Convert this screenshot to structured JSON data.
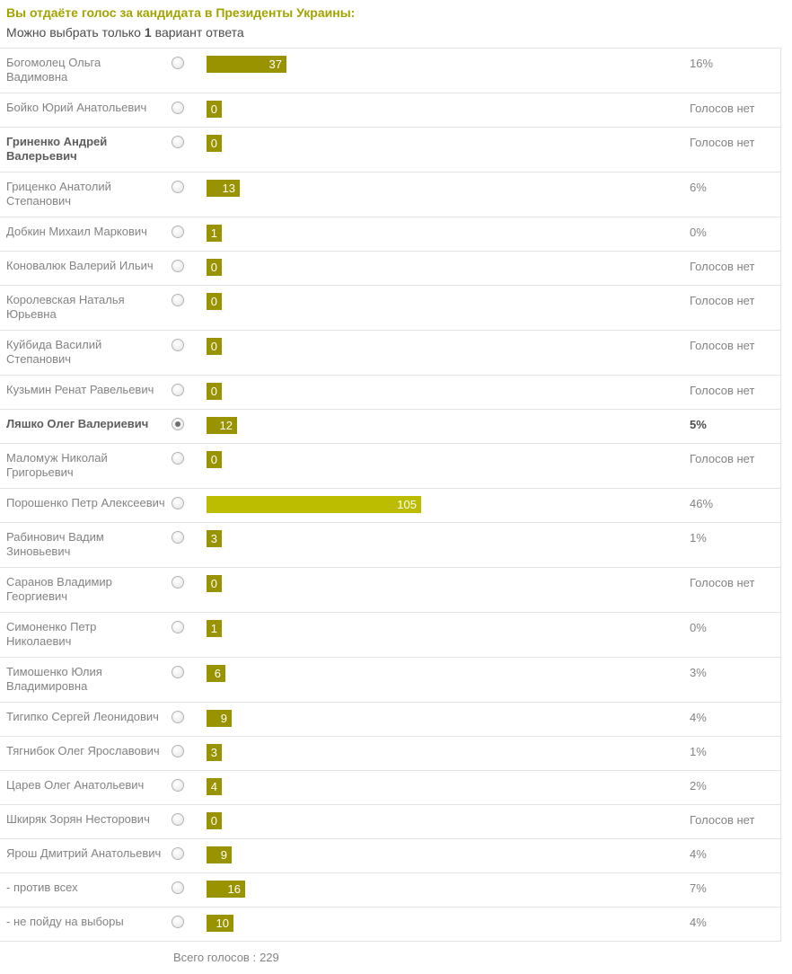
{
  "header": {
    "title": "Вы отдаёте голос за кандидата в Президенты Украины:",
    "subtitle": {
      "prefix": "Можно выбрать только",
      "count": "1",
      "suffix": "вариант ответа"
    }
  },
  "colors": {
    "title": "#a3a300",
    "bar": "#9a9300",
    "bar_leader": "#bcbd00",
    "divider": "#e3e3e3"
  },
  "poll": {
    "no_votes_label": "Голосов нет",
    "options": [
      {
        "name": "Богомолец Ольга\nВадимовна",
        "votes": 37,
        "percent": "16%",
        "selected": false,
        "emphasized": false,
        "leader": false
      },
      {
        "name": "Бойко Юрий Анатольевич",
        "votes": 0,
        "percent": null,
        "selected": false,
        "emphasized": false,
        "leader": false
      },
      {
        "name": "Гриненко Андрей\nВалерьевич",
        "votes": 0,
        "percent": null,
        "selected": false,
        "emphasized": true,
        "leader": false
      },
      {
        "name": "Гриценко Анатолий\nСтепанович",
        "votes": 13,
        "percent": "6%",
        "selected": false,
        "emphasized": false,
        "leader": false
      },
      {
        "name": "Добкин Михаил Маркович",
        "votes": 1,
        "percent": "0%",
        "selected": false,
        "emphasized": false,
        "leader": false
      },
      {
        "name": "Коновалюк Валерий Ильич",
        "votes": 0,
        "percent": null,
        "selected": false,
        "emphasized": false,
        "leader": false
      },
      {
        "name": "Королевская Наталья\nЮрьевна",
        "votes": 0,
        "percent": null,
        "selected": false,
        "emphasized": false,
        "leader": false
      },
      {
        "name": "Куйбида Василий\nСтепанович",
        "votes": 0,
        "percent": null,
        "selected": false,
        "emphasized": false,
        "leader": false
      },
      {
        "name": "Кузьмин Ренат Равельевич",
        "votes": 0,
        "percent": null,
        "selected": false,
        "emphasized": false,
        "leader": false
      },
      {
        "name": "Ляшко Олег Валериевич",
        "votes": 12,
        "percent": "5%",
        "selected": true,
        "emphasized": true,
        "leader": false
      },
      {
        "name": "Маломуж Николай\nГригорьевич",
        "votes": 0,
        "percent": null,
        "selected": false,
        "emphasized": false,
        "leader": false
      },
      {
        "name": "Порошенко Петр Алексеевич",
        "votes": 105,
        "percent": "46%",
        "selected": false,
        "emphasized": false,
        "leader": true
      },
      {
        "name": "Рабинович Вадим\nЗиновьевич",
        "votes": 3,
        "percent": "1%",
        "selected": false,
        "emphasized": false,
        "leader": false
      },
      {
        "name": "Саранов Владимир\nГеоргиевич",
        "votes": 0,
        "percent": null,
        "selected": false,
        "emphasized": false,
        "leader": false
      },
      {
        "name": "Симоненко Петр\nНиколаевич",
        "votes": 1,
        "percent": "0%",
        "selected": false,
        "emphasized": false,
        "leader": false
      },
      {
        "name": "Тимошенко Юлия\nВладимировна",
        "votes": 6,
        "percent": "3%",
        "selected": false,
        "emphasized": false,
        "leader": false
      },
      {
        "name": "Тигипко Сергей Леонидович",
        "votes": 9,
        "percent": "4%",
        "selected": false,
        "emphasized": false,
        "leader": false
      },
      {
        "name": "Тягнибок Олег Ярославович",
        "votes": 3,
        "percent": "1%",
        "selected": false,
        "emphasized": false,
        "leader": false
      },
      {
        "name": "Царев Олег Анатольевич",
        "votes": 4,
        "percent": "2%",
        "selected": false,
        "emphasized": false,
        "leader": false
      },
      {
        "name": "Шкиряк Зорян Несторович",
        "votes": 0,
        "percent": null,
        "selected": false,
        "emphasized": false,
        "leader": false
      },
      {
        "name": "Ярош Дмитрий Анатольевич",
        "votes": 9,
        "percent": "4%",
        "selected": false,
        "emphasized": false,
        "leader": false
      },
      {
        "name": "- против всех",
        "votes": 16,
        "percent": "7%",
        "selected": false,
        "emphasized": false,
        "leader": false
      },
      {
        "name": "- не пойду на выборы",
        "votes": 10,
        "percent": "4%",
        "selected": false,
        "emphasized": false,
        "leader": false
      }
    ],
    "footer": {
      "total_label": "Всего голосов :",
      "total_value": "229"
    }
  }
}
